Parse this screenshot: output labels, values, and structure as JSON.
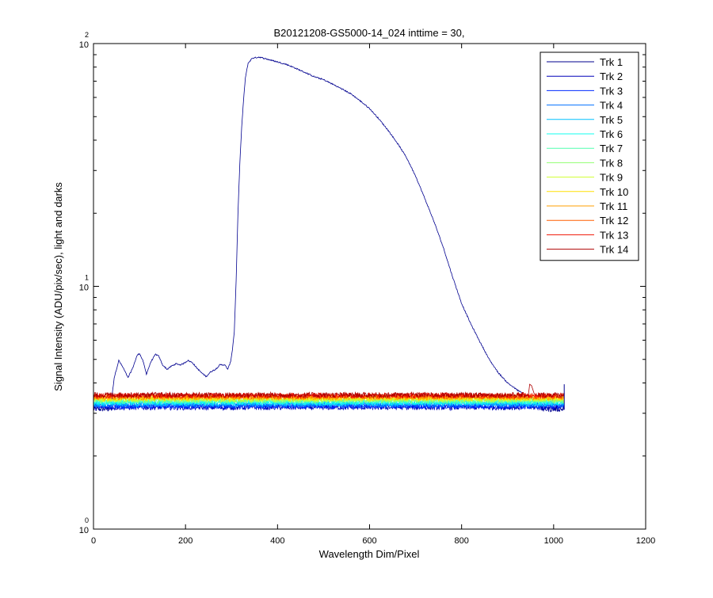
{
  "chart_data": {
    "type": "line",
    "title": "B20121208-GS5000-14_024 inttime = 30,",
    "xlabel": "Wavelength Dim/Pixel",
    "ylabel": "Signal Intensity (ADU/pix/sec), light and darks",
    "xlim": [
      0,
      1200
    ],
    "ylim": [
      1,
      100
    ],
    "yscale": "log",
    "x_ticks": [
      0,
      200,
      400,
      600,
      800,
      1000,
      1200
    ],
    "x_tick_labels": [
      "0",
      "200",
      "400",
      "600",
      "800",
      "1000",
      "1200"
    ],
    "y_ticks": [
      {
        "value": 1,
        "base": "10",
        "exp": "0"
      },
      {
        "value": 10,
        "base": "10",
        "exp": "1"
      },
      {
        "value": 100,
        "base": "10",
        "exp": "2"
      }
    ],
    "grid": false,
    "legend_position": "top-right",
    "series": [
      {
        "name": "Trk 1",
        "color": "#00008f",
        "level": 3.12,
        "signal": [
          [
            0,
            3.3
          ],
          [
            15,
            3.45
          ],
          [
            40,
            3.5
          ],
          [
            45,
            4.2
          ],
          [
            55,
            4.95
          ],
          [
            65,
            4.6
          ],
          [
            75,
            4.2
          ],
          [
            85,
            4.6
          ],
          [
            95,
            5.2
          ],
          [
            100,
            5.3
          ],
          [
            108,
            4.9
          ],
          [
            115,
            4.35
          ],
          [
            125,
            4.9
          ],
          [
            135,
            5.25
          ],
          [
            142,
            5.15
          ],
          [
            150,
            4.75
          ],
          [
            160,
            4.55
          ],
          [
            170,
            4.7
          ],
          [
            180,
            4.8
          ],
          [
            188,
            4.75
          ],
          [
            195,
            4.8
          ],
          [
            205,
            4.95
          ],
          [
            215,
            4.85
          ],
          [
            225,
            4.6
          ],
          [
            235,
            4.4
          ],
          [
            245,
            4.25
          ],
          [
            255,
            4.45
          ],
          [
            265,
            4.55
          ],
          [
            275,
            4.75
          ],
          [
            285,
            4.75
          ],
          [
            292,
            4.55
          ],
          [
            298,
            4.9
          ],
          [
            302,
            5.5
          ],
          [
            306,
            6.5
          ],
          [
            310,
            10.5
          ],
          [
            314,
            20
          ],
          [
            318,
            32
          ],
          [
            322,
            45
          ],
          [
            326,
            58
          ],
          [
            330,
            72
          ],
          [
            336,
            83
          ],
          [
            345,
            87
          ],
          [
            360,
            88
          ],
          [
            380,
            86
          ],
          [
            400,
            84
          ],
          [
            420,
            82
          ],
          [
            440,
            79
          ],
          [
            460,
            76
          ],
          [
            480,
            73
          ],
          [
            500,
            71
          ],
          [
            520,
            68
          ],
          [
            540,
            65
          ],
          [
            560,
            62
          ],
          [
            580,
            58
          ],
          [
            600,
            54
          ],
          [
            620,
            49
          ],
          [
            640,
            44
          ],
          [
            660,
            39
          ],
          [
            680,
            34
          ],
          [
            700,
            28.5
          ],
          [
            720,
            23
          ],
          [
            740,
            18.5
          ],
          [
            760,
            14.5
          ],
          [
            780,
            11
          ],
          [
            800,
            8.5
          ],
          [
            820,
            7
          ],
          [
            840,
            5.9
          ],
          [
            860,
            5.0
          ],
          [
            880,
            4.4
          ],
          [
            900,
            4.0
          ],
          [
            920,
            3.75
          ],
          [
            940,
            3.55
          ],
          [
            960,
            3.45
          ],
          [
            970,
            3.4
          ]
        ]
      },
      {
        "name": "Trk 2",
        "color": "#0000ba",
        "level": 3.17
      },
      {
        "name": "Trk 3",
        "color": "#0028ff",
        "level": 3.21
      },
      {
        "name": "Trk 4",
        "color": "#0070ff",
        "level": 3.25
      },
      {
        "name": "Trk 5",
        "color": "#00c0ff",
        "level": 3.29
      },
      {
        "name": "Trk 6",
        "color": "#10ffef",
        "level": 3.33
      },
      {
        "name": "Trk 7",
        "color": "#50ffaf",
        "level": 3.37
      },
      {
        "name": "Trk 8",
        "color": "#90ff6f",
        "level": 3.4
      },
      {
        "name": "Trk 9",
        "color": "#d0ff2f",
        "level": 3.43
      },
      {
        "name": "Trk 10",
        "color": "#ffdf00",
        "level": 3.46
      },
      {
        "name": "Trk 11",
        "color": "#ff9f00",
        "level": 3.49
      },
      {
        "name": "Trk 12",
        "color": "#ff5f00",
        "level": 3.52
      },
      {
        "name": "Trk 13",
        "color": "#ef1000",
        "level": 3.55
      },
      {
        "name": "Trk 14",
        "color": "#af0000",
        "level": 3.57,
        "bump": [
          [
            945,
            3.55
          ],
          [
            948,
            3.95
          ],
          [
            952,
            3.9
          ],
          [
            958,
            3.6
          ],
          [
            965,
            3.55
          ]
        ]
      }
    ]
  }
}
